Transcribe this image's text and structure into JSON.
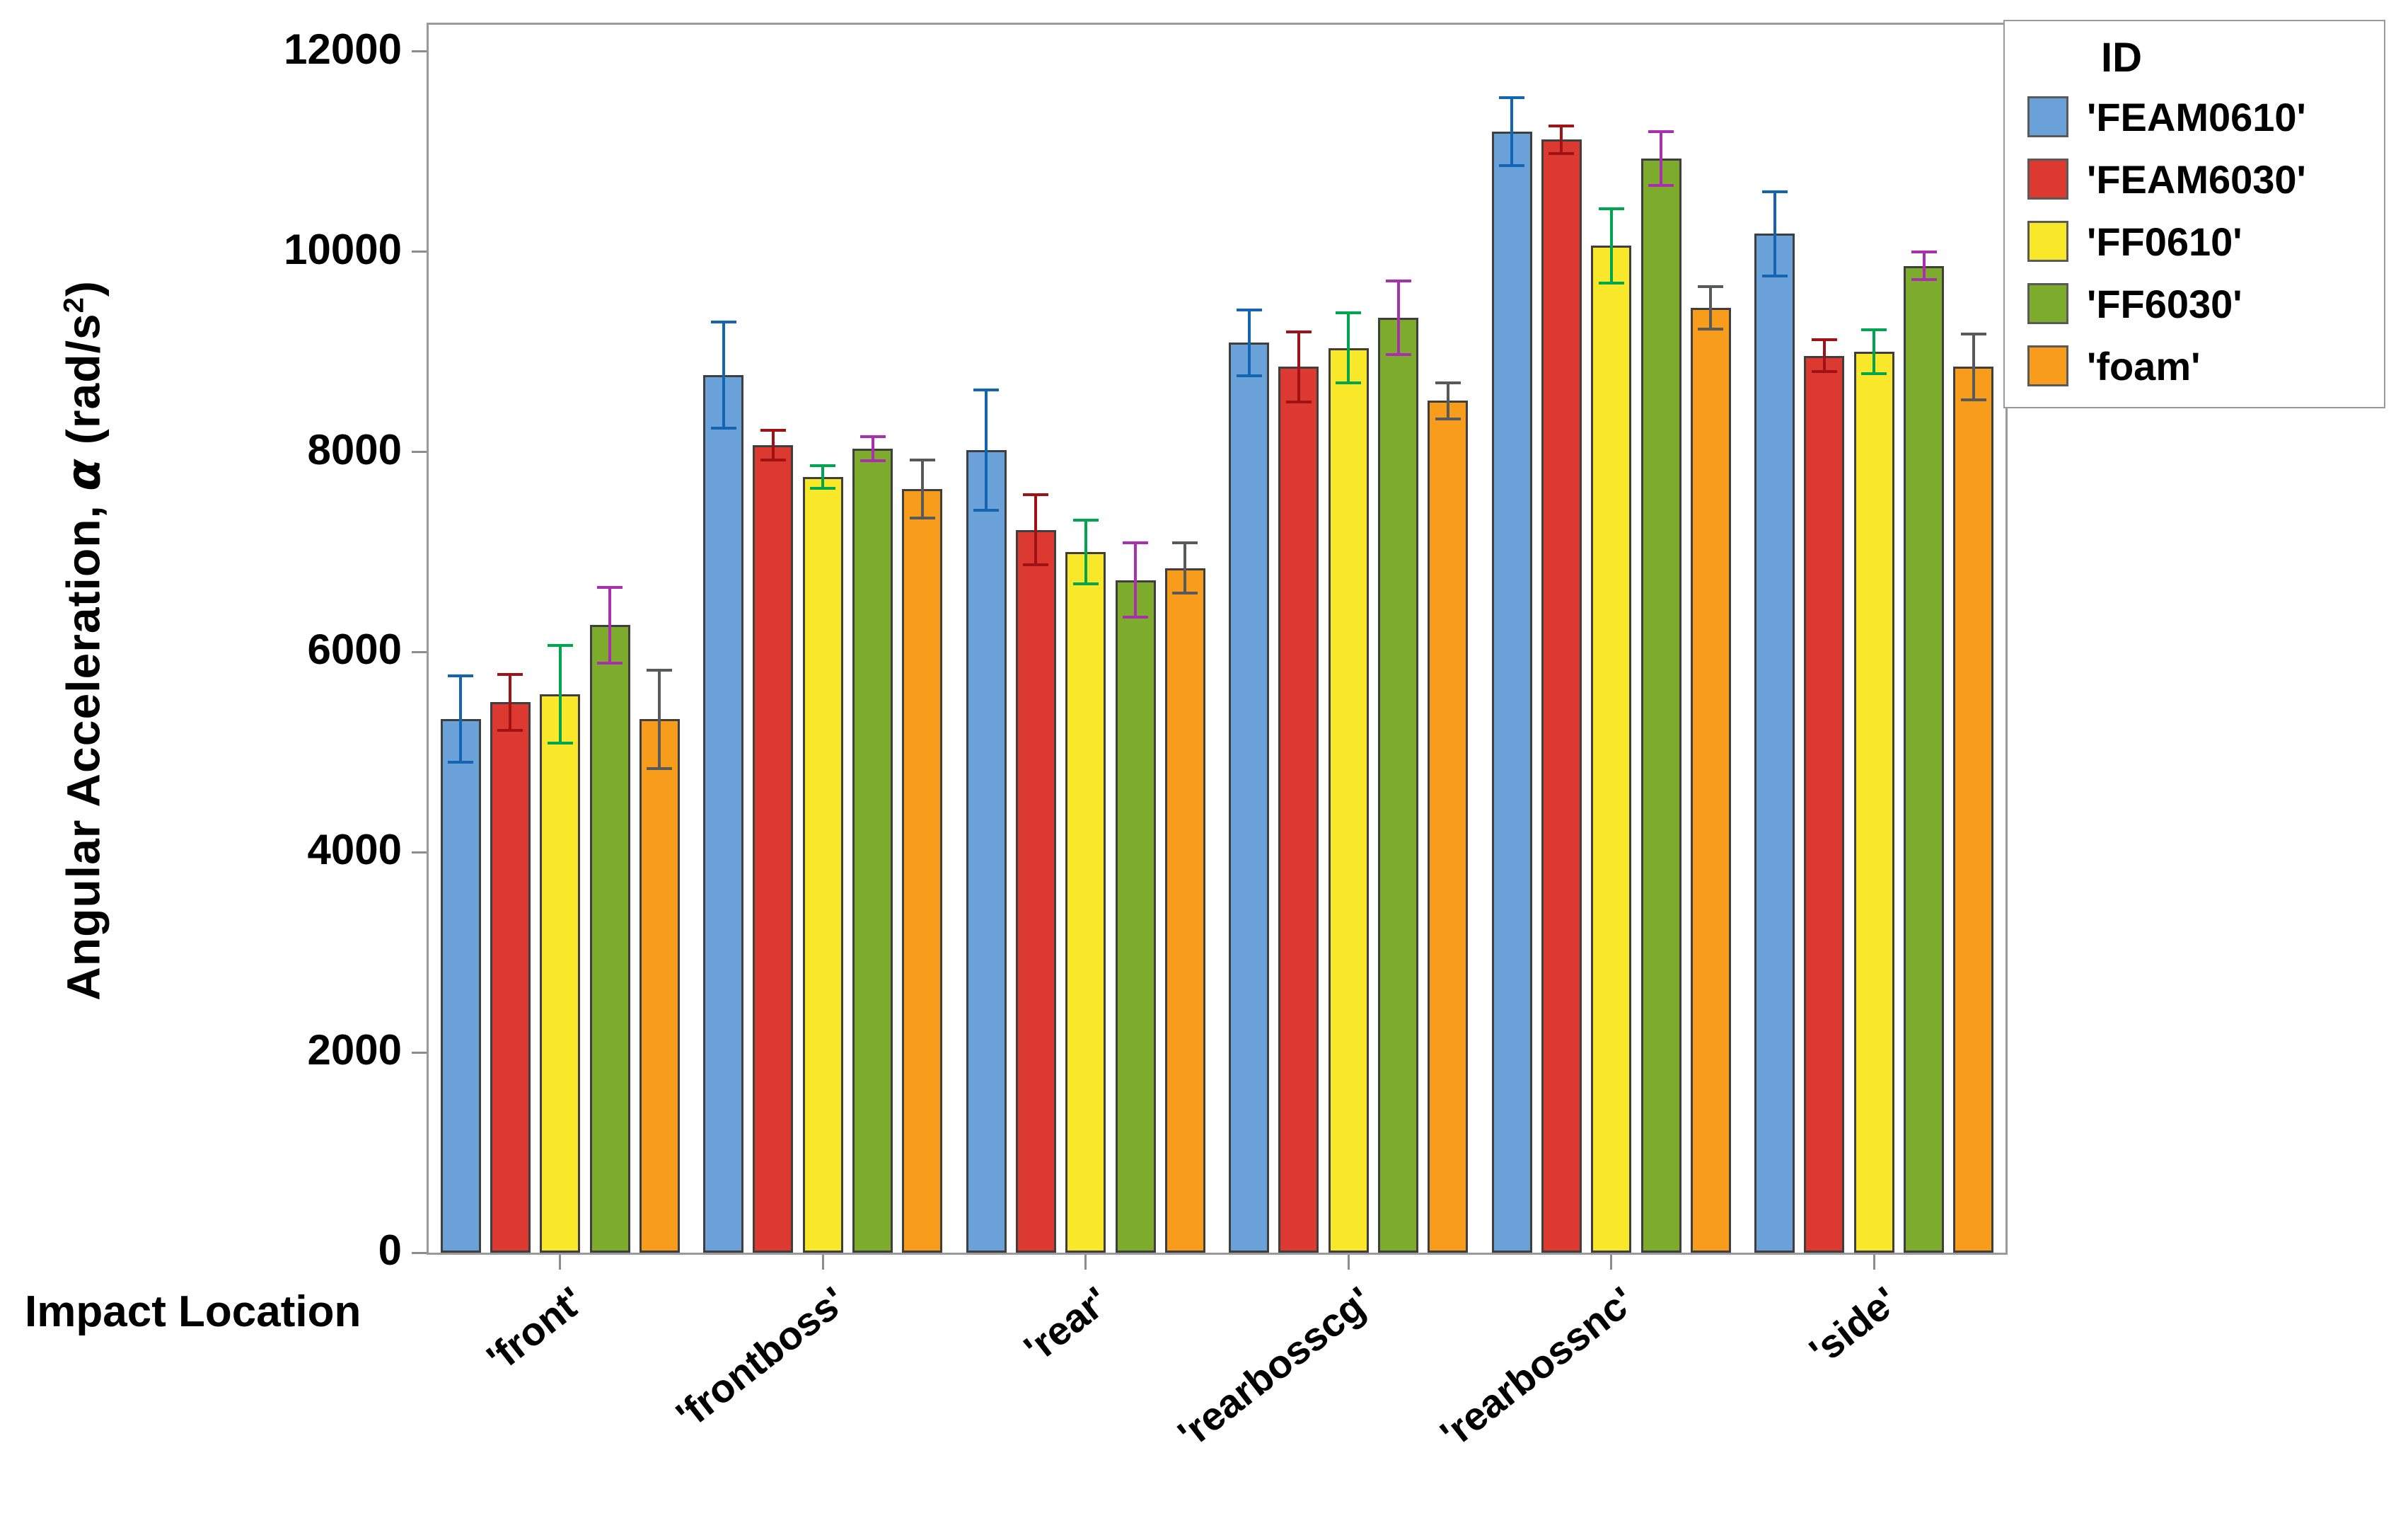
{
  "chart_data": {
    "type": "bar",
    "title": "",
    "xlabel": "Impact Location",
    "ylabel": "Angular Acceleration, α (rad/s²)",
    "ylabel_parts": {
      "prefix": "Angular Acceleration, ",
      "symbol": "α",
      "unit_open": " (rad/s",
      "sup": "2",
      "unit_close": ")"
    },
    "legend_title": "ID",
    "legend_position": "top-right-outside",
    "grid": false,
    "categories": [
      "'front'",
      "'frontboss'",
      "'rear'",
      "'rearbosscg'",
      "'rearbossnc'",
      "'side'"
    ],
    "ylim": [
      0,
      12000
    ],
    "yticks": [
      0,
      2000,
      4000,
      6000,
      8000,
      10000,
      12000
    ],
    "series": [
      {
        "name": "'FEAM0610'",
        "color": "#6AA1D8",
        "error_color": "#1464B4",
        "values": [
          5330,
          8770,
          8020,
          9090,
          11200,
          10180
        ],
        "errors": [
          430,
          530,
          600,
          330,
          340,
          420
        ]
      },
      {
        "name": "'FEAM6030'",
        "color": "#DC3A31",
        "error_color": "#A01216",
        "values": [
          5500,
          8070,
          7220,
          8850,
          11120,
          8960
        ],
        "errors": [
          280,
          150,
          350,
          350,
          140,
          160
        ]
      },
      {
        "name": "'FF0610'",
        "color": "#F9E829",
        "error_color": "#00A550",
        "values": [
          5580,
          7750,
          7000,
          9040,
          10060,
          9000
        ],
        "errors": [
          490,
          110,
          320,
          350,
          370,
          220
        ]
      },
      {
        "name": "'FF6030'",
        "color": "#7DAB2C",
        "error_color": "#AA2FAF",
        "values": [
          6270,
          8030,
          6720,
          9340,
          10930,
          9860
        ],
        "errors": [
          380,
          120,
          370,
          370,
          270,
          140
        ]
      },
      {
        "name": "'foam'",
        "color": "#F89C1C",
        "error_color": "#58595B",
        "values": [
          5330,
          7630,
          6840,
          8510,
          9440,
          8850
        ],
        "errors": [
          490,
          290,
          250,
          180,
          210,
          330
        ]
      }
    ]
  }
}
